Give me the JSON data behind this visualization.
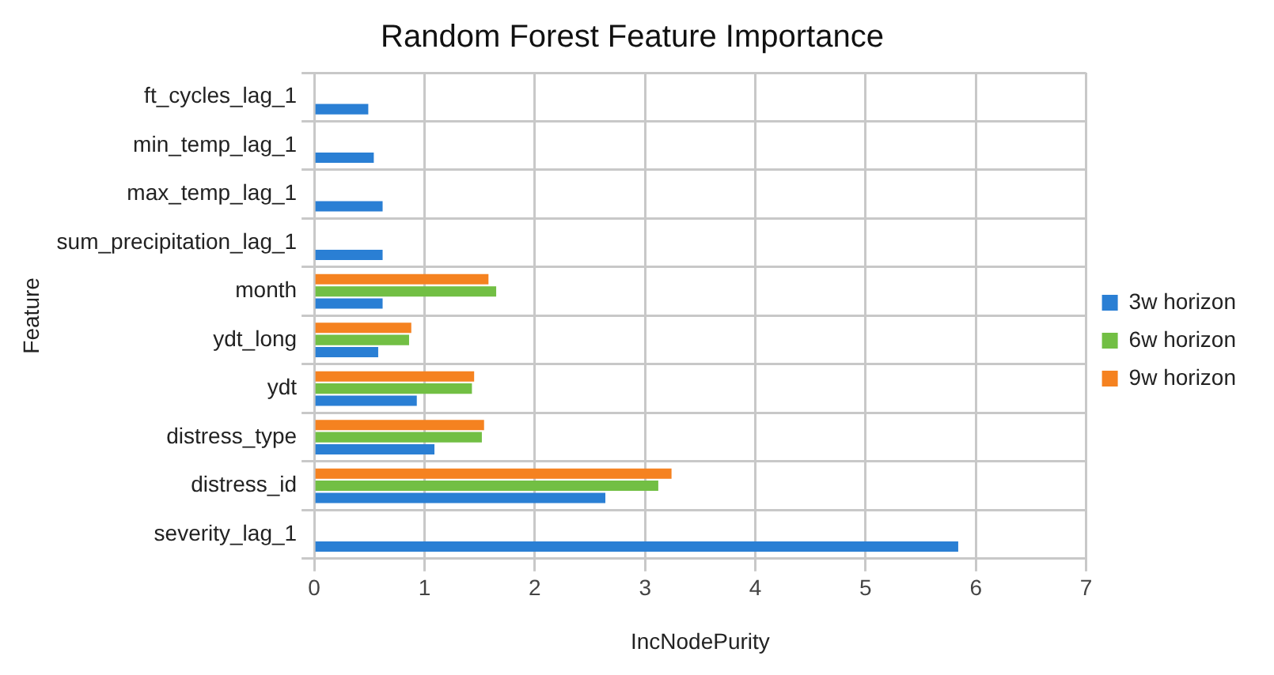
{
  "chart_data": {
    "type": "bar",
    "orientation": "horizontal",
    "title": "Random Forest Feature Importance",
    "xlabel": "IncNodePurity",
    "ylabel": "Feature",
    "categories": [
      "ft_cycles_lag_1",
      "min_temp_lag_1",
      "max_temp_lag_1",
      "sum_precipitation_lag_1",
      "month",
      "ydt_long",
      "ydt",
      "distress_type",
      "distress_id",
      "severity_lag_1"
    ],
    "series": [
      {
        "name": "3w horizon",
        "color": "#2a7fd4",
        "values": [
          0.49,
          0.54,
          0.62,
          0.62,
          0.62,
          0.58,
          0.93,
          1.09,
          2.64,
          5.84
        ]
      },
      {
        "name": "6w horizon",
        "color": "#72bf44",
        "values": [
          null,
          null,
          null,
          null,
          1.65,
          0.86,
          1.43,
          1.52,
          3.12,
          null
        ]
      },
      {
        "name": "9w horizon",
        "color": "#f58220",
        "values": [
          null,
          null,
          null,
          null,
          1.58,
          0.88,
          1.45,
          1.54,
          3.24,
          null
        ]
      }
    ],
    "xlim": [
      0,
      7
    ],
    "xticks": [
      0,
      1,
      2,
      3,
      4,
      5,
      6,
      7
    ],
    "grid": true,
    "legend": "right"
  }
}
